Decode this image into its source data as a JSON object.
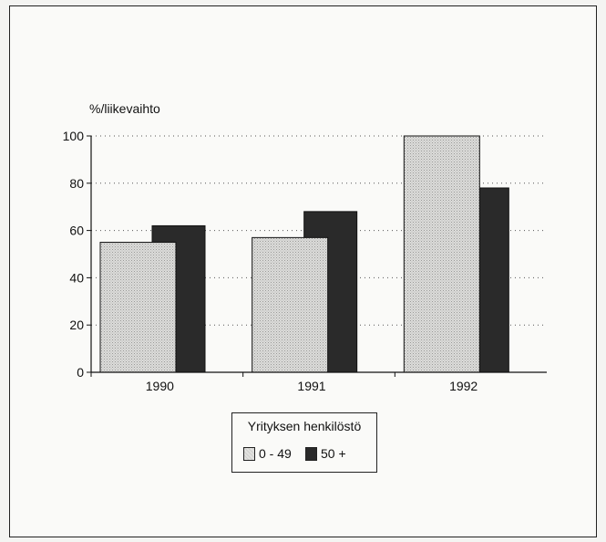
{
  "chart_data": {
    "type": "bar",
    "ylabel": "%/liikevaihto",
    "categories": [
      "1990",
      "1991",
      "1992"
    ],
    "yticks": [
      "0",
      "20",
      "40",
      "60",
      "80",
      "100"
    ],
    "ylim": [
      0,
      100
    ],
    "grid": true,
    "series": [
      {
        "name": "0 - 49",
        "values": [
          55,
          57,
          100
        ],
        "color": "#d8d8d6"
      },
      {
        "name": "50 +",
        "values": [
          62,
          68,
          78
        ],
        "color": "#2a2a2a"
      }
    ],
    "legend": {
      "title": "Yrityksen henkilöstö",
      "placement": "bottom-center"
    }
  }
}
